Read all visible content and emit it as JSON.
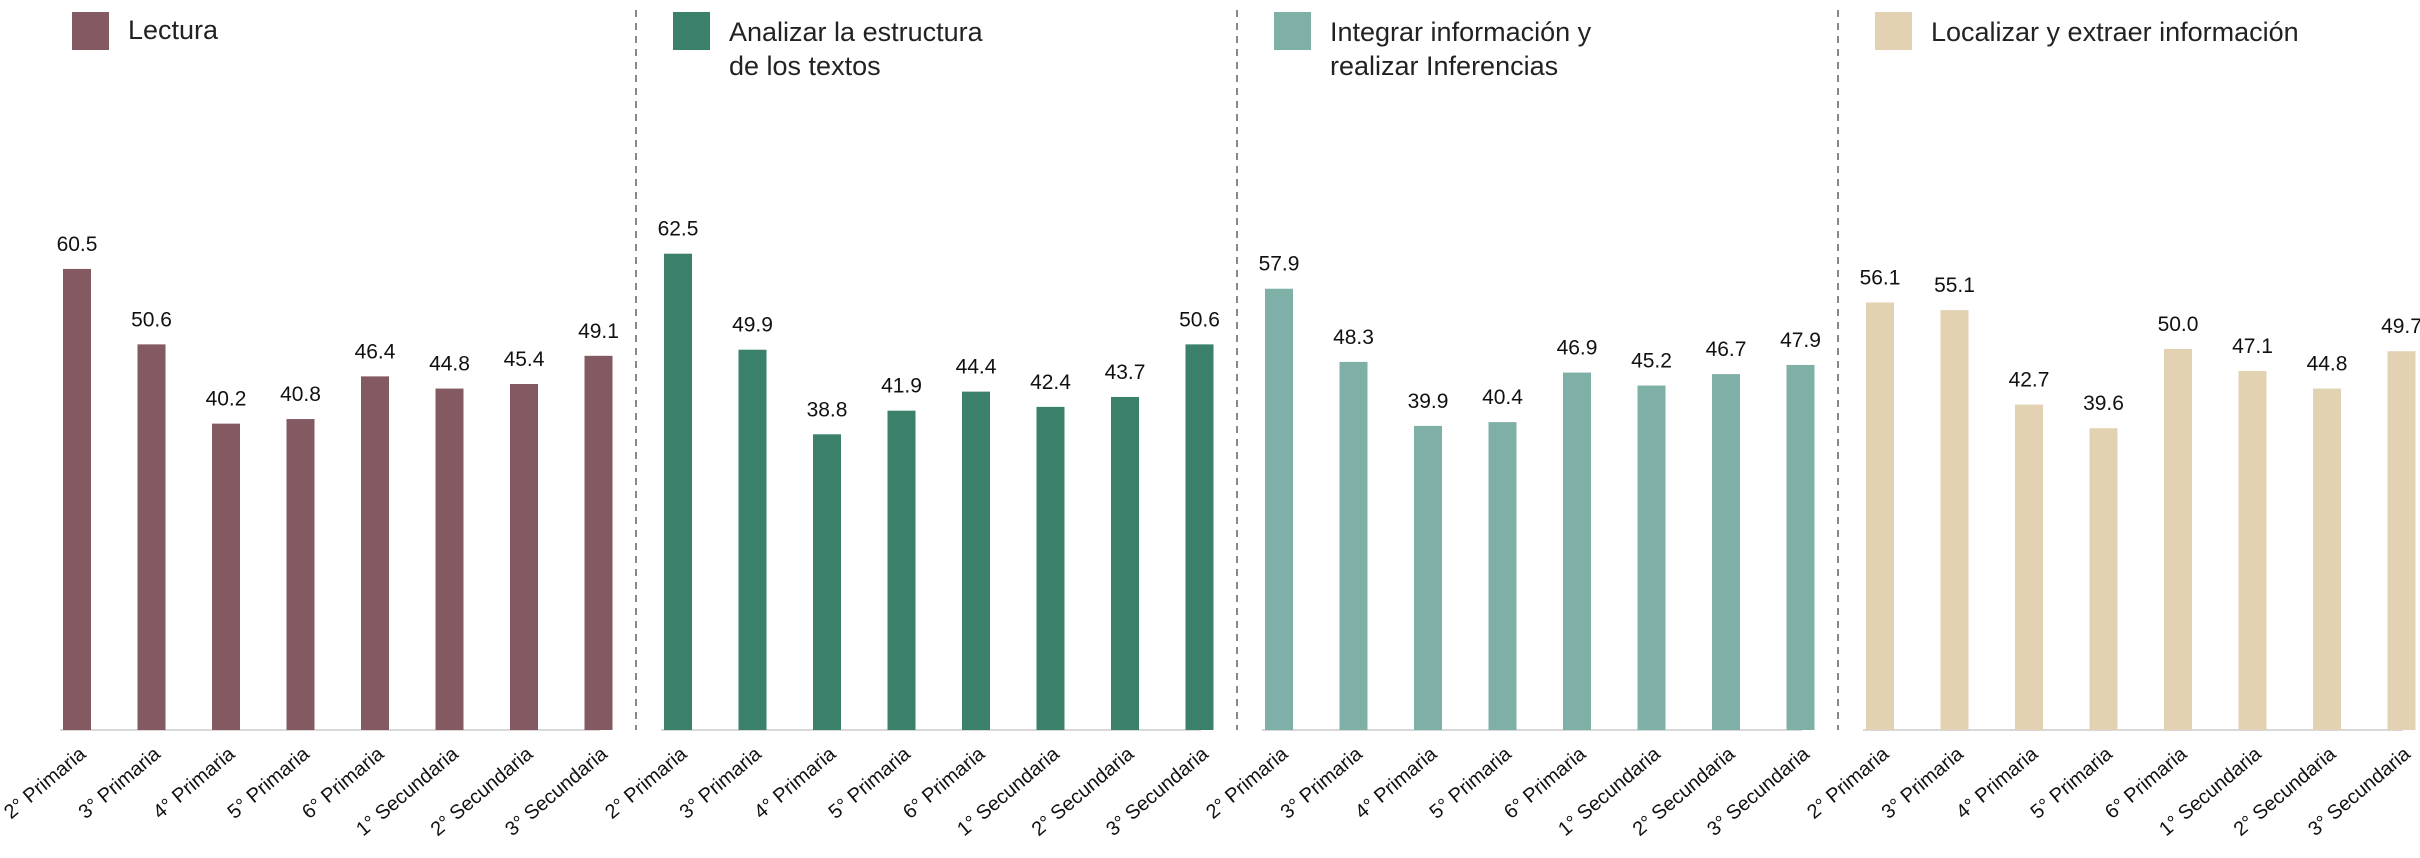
{
  "chart_data": [
    {
      "type": "bar",
      "categories": [
        "2° Primaria",
        "3° Primaria",
        "4° Primaria",
        "5° Primaria",
        "6° Primaria",
        "1° Secundaria",
        "2° Secundaria",
        "3° Secundaria"
      ],
      "series": [
        {
          "name": "Lectura",
          "color": "#845a62",
          "values": [
            60.5,
            50.6,
            40.2,
            40.8,
            46.4,
            44.8,
            45.4,
            49.1
          ],
          "value_labels": [
            "60.5",
            "50.6",
            "40.2",
            "40.8",
            "46.4",
            "44.8",
            "45.4",
            "49.1"
          ]
        }
      ],
      "ylim": [
        0,
        95
      ]
    },
    {
      "type": "bar",
      "categories": [
        "2° Primaria",
        "3° Primaria",
        "4° Primaria",
        "5° Primaria",
        "6° Primaria",
        "1° Secundaria",
        "2° Secundaria",
        "3° Secundaria"
      ],
      "series": [
        {
          "name": "Analizar la estructura\nde los textos",
          "color": "#3a806b",
          "values": [
            62.5,
            49.9,
            38.8,
            41.9,
            44.4,
            42.4,
            43.7,
            50.6
          ],
          "value_labels": [
            "62.5",
            "49.9",
            "38.8",
            "41.9",
            "44.4",
            "42.4",
            "43.7",
            "50.6"
          ]
        }
      ],
      "ylim": [
        0,
        95
      ]
    },
    {
      "type": "bar",
      "categories": [
        "2° Primaria",
        "3° Primaria",
        "4° Primaria",
        "5° Primaria",
        "6° Primaria",
        "1° Secundaria",
        "2° Secundaria",
        "3° Secundaria"
      ],
      "series": [
        {
          "name": "Integrar información y\n realizar Inferencias",
          "color": "#7fb0a7",
          "values": [
            57.9,
            48.3,
            39.9,
            40.4,
            46.9,
            45.2,
            46.7,
            47.9
          ],
          "value_labels": [
            "57.9",
            "48.3",
            "39.9",
            "40.4",
            "46.9",
            "45.2",
            "46.7",
            "47.9"
          ]
        }
      ],
      "ylim": [
        0,
        95
      ]
    },
    {
      "type": "bar",
      "categories": [
        "2° Primaria",
        "3° Primaria",
        "4° Primaria",
        "5° Primaria",
        "6° Primaria",
        "1° Secundaria",
        "2° Secundaria",
        "3° Secundaria"
      ],
      "series": [
        {
          "name": "Localizar y extraer información",
          "color": "#e3d2b1",
          "values": [
            56.1,
            55.1,
            42.7,
            39.6,
            50.0,
            47.1,
            44.8,
            49.7
          ],
          "value_labels": [
            "56.1",
            "55.1",
            "42.7",
            "39.6",
            "50.0",
            "47.1",
            "44.8",
            "49.7"
          ]
        }
      ],
      "ylim": [
        0,
        95
      ]
    }
  ]
}
